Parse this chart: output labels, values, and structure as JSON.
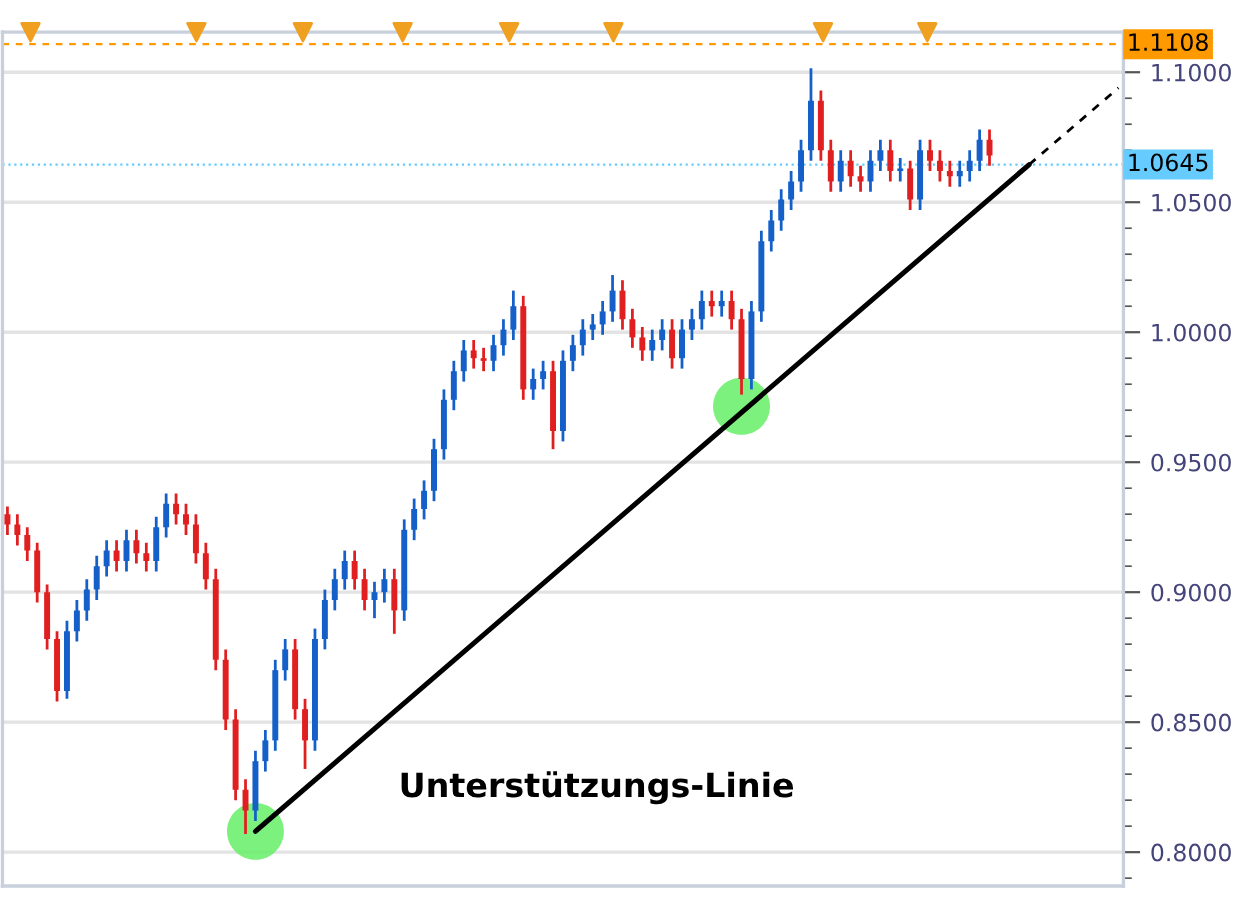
{
  "chart_data": {
    "type": "candlestick",
    "categories": [
      null,
      null,
      null,
      null,
      null,
      null,
      null,
      null,
      null,
      null,
      null,
      null,
      null,
      null,
      null,
      null,
      null,
      null,
      null,
      null,
      null,
      null,
      null,
      null,
      null,
      null,
      null,
      null,
      null,
      null,
      null,
      null,
      null,
      null,
      null,
      null,
      null,
      null,
      null,
      null,
      null,
      null,
      null,
      null,
      null,
      null,
      null,
      null,
      null,
      null,
      null,
      null,
      null,
      null,
      null,
      null,
      null,
      null,
      null,
      null,
      null,
      null,
      null,
      null,
      null,
      null,
      null,
      null,
      null,
      null,
      null,
      null,
      null,
      null,
      null,
      null,
      null,
      null,
      null,
      null,
      null,
      null,
      null,
      null,
      null,
      null,
      null,
      null,
      null,
      null,
      null,
      null,
      null,
      null,
      null,
      null,
      null,
      null,
      null,
      null,
      null,
      null,
      null,
      null,
      null,
      null,
      null,
      null,
      null,
      null,
      null,
      null,
      null
    ],
    "ohlc": [
      [
        0.93,
        0.933,
        0.922,
        0.926
      ],
      [
        0.926,
        0.93,
        0.918,
        0.922
      ],
      [
        0.922,
        0.925,
        0.912,
        0.916
      ],
      [
        0.916,
        0.919,
        0.896,
        0.9
      ],
      [
        0.9,
        0.903,
        0.878,
        0.882
      ],
      [
        0.882,
        0.885,
        0.858,
        0.862
      ],
      [
        0.862,
        0.889,
        0.859,
        0.885
      ],
      [
        0.885,
        0.897,
        0.881,
        0.893
      ],
      [
        0.893,
        0.905,
        0.889,
        0.901
      ],
      [
        0.901,
        0.914,
        0.897,
        0.91
      ],
      [
        0.91,
        0.92,
        0.906,
        0.916
      ],
      [
        0.916,
        0.92,
        0.908,
        0.912
      ],
      [
        0.912,
        0.924,
        0.908,
        0.92
      ],
      [
        0.92,
        0.924,
        0.911,
        0.915
      ],
      [
        0.915,
        0.919,
        0.908,
        0.912
      ],
      [
        0.912,
        0.929,
        0.908,
        0.925
      ],
      [
        0.925,
        0.938,
        0.921,
        0.934
      ],
      [
        0.934,
        0.938,
        0.926,
        0.93
      ],
      [
        0.93,
        0.934,
        0.922,
        0.926
      ],
      [
        0.926,
        0.93,
        0.911,
        0.915
      ],
      [
        0.915,
        0.919,
        0.901,
        0.905
      ],
      [
        0.905,
        0.909,
        0.87,
        0.874
      ],
      [
        0.874,
        0.878,
        0.847,
        0.851
      ],
      [
        0.851,
        0.855,
        0.82,
        0.824
      ],
      [
        0.824,
        0.828,
        0.807,
        0.816
      ],
      [
        0.816,
        0.839,
        0.812,
        0.835
      ],
      [
        0.835,
        0.847,
        0.831,
        0.843
      ],
      [
        0.843,
        0.874,
        0.839,
        0.87
      ],
      [
        0.87,
        0.882,
        0.866,
        0.878
      ],
      [
        0.878,
        0.882,
        0.851,
        0.855
      ],
      [
        0.855,
        0.859,
        0.832,
        0.843
      ],
      [
        0.843,
        0.886,
        0.839,
        0.882
      ],
      [
        0.882,
        0.901,
        0.878,
        0.897
      ],
      [
        0.897,
        0.909,
        0.893,
        0.905
      ],
      [
        0.905,
        0.916,
        0.901,
        0.912
      ],
      [
        0.912,
        0.916,
        0.901,
        0.905
      ],
      [
        0.905,
        0.909,
        0.893,
        0.897
      ],
      [
        0.897,
        0.904,
        0.89,
        0.9
      ],
      [
        0.9,
        0.909,
        0.896,
        0.905
      ],
      [
        0.905,
        0.909,
        0.884,
        0.893
      ],
      [
        0.893,
        0.928,
        0.889,
        0.924
      ],
      [
        0.924,
        0.936,
        0.92,
        0.932
      ],
      [
        0.932,
        0.943,
        0.928,
        0.939
      ],
      [
        0.939,
        0.959,
        0.935,
        0.955
      ],
      [
        0.955,
        0.978,
        0.951,
        0.974
      ],
      [
        0.974,
        0.989,
        0.97,
        0.985
      ],
      [
        0.985,
        0.997,
        0.981,
        0.993
      ],
      [
        0.993,
        0.997,
        0.986,
        0.99
      ],
      [
        0.99,
        0.994,
        0.985,
        0.989
      ],
      [
        0.989,
        0.999,
        0.985,
        0.995
      ],
      [
        0.995,
        1.005,
        0.991,
        1.001
      ],
      [
        1.001,
        1.016,
        0.997,
        1.01
      ],
      [
        1.01,
        1.014,
        0.974,
        0.978
      ],
      [
        0.978,
        0.986,
        0.974,
        0.982
      ],
      [
        0.982,
        0.989,
        0.978,
        0.985
      ],
      [
        0.985,
        0.989,
        0.955,
        0.962
      ],
      [
        0.962,
        0.993,
        0.958,
        0.989
      ],
      [
        0.989,
        0.999,
        0.985,
        0.995
      ],
      [
        0.995,
        1.005,
        0.991,
        1.001
      ],
      [
        1.001,
        1.007,
        0.997,
        1.003
      ],
      [
        1.003,
        1.012,
        0.999,
        1.008
      ],
      [
        1.008,
        1.022,
        1.004,
        1.016
      ],
      [
        1.016,
        1.02,
        1.001,
        1.005
      ],
      [
        1.005,
        1.009,
        0.994,
        0.998
      ],
      [
        0.998,
        1.002,
        0.989,
        0.993
      ],
      [
        0.993,
        1.001,
        0.989,
        0.997
      ],
      [
        0.997,
        1.005,
        0.993,
        1.001
      ],
      [
        1.001,
        1.005,
        0.986,
        0.99
      ],
      [
        0.99,
        1.005,
        0.986,
        1.001
      ],
      [
        1.001,
        1.009,
        0.997,
        1.005
      ],
      [
        1.005,
        1.016,
        1.001,
        1.012
      ],
      [
        1.012,
        1.016,
        1.006,
        1.01
      ],
      [
        1.01,
        1.016,
        1.006,
        1.012
      ],
      [
        1.012,
        1.016,
        1.001,
        1.005
      ],
      [
        1.005,
        1.009,
        0.976,
        0.982
      ],
      [
        0.982,
        1.012,
        0.978,
        1.008
      ],
      [
        1.008,
        1.039,
        1.004,
        1.035
      ],
      [
        1.035,
        1.047,
        1.031,
        1.043
      ],
      [
        1.043,
        1.055,
        1.039,
        1.051
      ],
      [
        1.051,
        1.062,
        1.047,
        1.058
      ],
      [
        1.058,
        1.074,
        1.054,
        1.07
      ],
      [
        1.07,
        1.1015,
        1.066,
        1.089
      ],
      [
        1.089,
        1.093,
        1.066,
        1.07
      ],
      [
        1.07,
        1.074,
        1.054,
        1.058
      ],
      [
        1.058,
        1.07,
        1.054,
        1.066
      ],
      [
        1.066,
        1.07,
        1.056,
        1.06
      ],
      [
        1.06,
        1.064,
        1.054,
        1.058
      ],
      [
        1.058,
        1.07,
        1.054,
        1.066
      ],
      [
        1.066,
        1.074,
        1.062,
        1.07
      ],
      [
        1.07,
        1.074,
        1.058,
        1.062
      ],
      [
        1.062,
        1.067,
        1.058,
        1.063
      ],
      [
        1.063,
        1.066,
        1.047,
        1.051
      ],
      [
        1.051,
        1.074,
        1.047,
        1.07
      ],
      [
        1.07,
        1.074,
        1.062,
        1.066
      ],
      [
        1.066,
        1.07,
        1.058,
        1.062
      ],
      [
        1.062,
        1.066,
        1.056,
        1.06
      ],
      [
        1.06,
        1.066,
        1.056,
        1.062
      ],
      [
        1.062,
        1.07,
        1.058,
        1.066
      ],
      [
        1.066,
        1.078,
        1.062,
        1.074
      ],
      [
        1.074,
        1.078,
        1.064,
        1.068
      ],
      null,
      null,
      null,
      null,
      null,
      null,
      null,
      null,
      null,
      null,
      null,
      null,
      null
    ],
    "colors": [
      "#e02020",
      "#e02020",
      "#e02020",
      "#e02020",
      "#e02020",
      "#e02020",
      "#1560c8",
      "#1560c8",
      "#1560c8",
      "#1560c8",
      "#1560c8",
      "#e02020",
      "#1560c8",
      "#e02020",
      "#e02020",
      "#1560c8",
      "#1560c8",
      "#e02020",
      "#e02020",
      "#e02020",
      "#e02020",
      "#e02020",
      "#e02020",
      "#e02020",
      "#e02020",
      "#1560c8",
      "#1560c8",
      "#1560c8",
      "#1560c8",
      "#e02020",
      "#e02020",
      "#1560c8",
      "#1560c8",
      "#1560c8",
      "#1560c8",
      "#e02020",
      "#e02020",
      "#1560c8",
      "#1560c8",
      "#e02020",
      "#1560c8",
      "#1560c8",
      "#1560c8",
      "#1560c8",
      "#1560c8",
      "#1560c8",
      "#1560c8",
      "#e02020",
      "#e02020",
      "#1560c8",
      "#1560c8",
      "#1560c8",
      "#e02020",
      "#1560c8",
      "#1560c8",
      "#e02020",
      "#1560c8",
      "#1560c8",
      "#1560c8",
      "#1560c8",
      "#1560c8",
      "#1560c8",
      "#e02020",
      "#e02020",
      "#e02020",
      "#1560c8",
      "#1560c8",
      "#e02020",
      "#1560c8",
      "#1560c8",
      "#1560c8",
      "#e02020",
      "#1560c8",
      "#e02020",
      "#e02020",
      "#1560c8",
      "#1560c8",
      "#1560c8",
      "#1560c8",
      "#1560c8",
      "#1560c8",
      "#1560c8",
      "#e02020",
      "#e02020",
      "#1560c8",
      "#e02020",
      "#e02020",
      "#1560c8",
      "#1560c8",
      "#e02020",
      "#1560c8",
      "#e02020",
      "#1560c8",
      "#e02020",
      "#e02020",
      "#e02020",
      "#1560c8",
      "#1560c8",
      "#1560c8",
      "#e02020",
      null,
      null,
      null,
      null,
      null,
      null,
      null,
      null,
      null,
      null,
      null,
      null,
      null
    ],
    "series": [
      {
        "type": "line",
        "values": [
          null,
          null,
          null,
          null,
          null,
          null,
          null,
          null,
          null,
          null,
          null,
          null,
          null,
          null,
          null,
          null,
          null,
          null,
          null,
          null,
          null,
          null,
          null,
          null,
          null,
          0.808,
          null,
          null,
          null,
          null,
          null,
          null,
          null,
          null,
          null,
          null,
          null,
          null,
          null,
          null,
          null,
          null,
          null,
          null,
          null,
          null,
          null,
          null,
          null,
          null,
          null,
          null,
          null,
          null,
          null,
          null,
          null,
          null,
          null,
          null,
          null,
          null,
          null,
          null,
          null,
          null,
          null,
          null,
          null,
          null,
          null,
          null,
          null,
          null,
          null,
          null,
          null,
          null,
          null,
          null,
          null,
          null,
          null,
          null,
          null,
          null,
          null,
          null,
          null,
          null,
          null,
          null,
          null,
          null,
          null,
          null,
          null,
          null,
          null,
          null,
          null,
          null,
          null,
          1.0645,
          null,
          null,
          null,
          null,
          null,
          null,
          null,
          null,
          null
        ],
        "color": "#000000",
        "line_style": "solid"
      },
      {
        "type": "line",
        "values": [
          null,
          null,
          null,
          null,
          null,
          null,
          null,
          null,
          null,
          null,
          null,
          null,
          null,
          null,
          null,
          null,
          null,
          null,
          null,
          null,
          null,
          null,
          null,
          null,
          null,
          null,
          null,
          null,
          null,
          null,
          null,
          null,
          null,
          null,
          null,
          null,
          null,
          null,
          null,
          null,
          null,
          null,
          null,
          null,
          null,
          null,
          null,
          null,
          null,
          null,
          null,
          null,
          null,
          null,
          null,
          null,
          null,
          null,
          null,
          null,
          null,
          null,
          null,
          null,
          null,
          null,
          null,
          null,
          null,
          null,
          null,
          null,
          null,
          null,
          null,
          null,
          null,
          null,
          null,
          null,
          null,
          null,
          null,
          null,
          null,
          null,
          null,
          null,
          null,
          null,
          null,
          null,
          null,
          null,
          null,
          null,
          null,
          null,
          null,
          null,
          null,
          null,
          null,
          1.0645,
          null,
          null,
          null,
          null,
          null,
          null,
          null,
          null,
          1.094
        ],
        "color": "#000000",
        "line_style": "dashed"
      },
      {
        "type": "scatter",
        "values": [
          null,
          null,
          null,
          null,
          null,
          null,
          null,
          null,
          null,
          null,
          null,
          null,
          null,
          null,
          null,
          null,
          null,
          null,
          null,
          null,
          null,
          null,
          null,
          null,
          null,
          0.808,
          null,
          null,
          null,
          null,
          null,
          null,
          null,
          null,
          null,
          null,
          null,
          null,
          null,
          null,
          null,
          null,
          null,
          null,
          null,
          null,
          null,
          null,
          null,
          null,
          null,
          null,
          null,
          null,
          null,
          null,
          null,
          null,
          null,
          null,
          null,
          null,
          null,
          null,
          null,
          null,
          null,
          null,
          null,
          null,
          null,
          null,
          null,
          null,
          0.9715,
          null,
          null,
          null,
          null,
          null,
          null,
          null,
          null,
          null,
          null,
          null,
          null,
          null,
          null,
          null,
          null,
          null,
          null,
          null,
          null,
          null,
          null,
          null,
          null,
          null,
          null,
          null,
          null,
          null,
          null,
          null,
          null,
          null,
          null,
          null,
          null,
          null,
          null
        ],
        "color": "#66ee66"
      }
    ],
    "annotations": [
      "Unterstützungs-Linie"
    ],
    "ref_lines": [
      {
        "axis": "y",
        "value": 1.1108,
        "label": "1.1108",
        "color": "#ff9900",
        "line_style": "dashed"
      },
      {
        "axis": "y",
        "value": 1.0645,
        "label": "1.0645",
        "color": "#66ccff",
        "line_style": "dotted"
      }
    ],
    "ylim": [
      0.787,
      1.1154
    ],
    "yticks": [
      {
        "value": 0.8,
        "label": "0.8000"
      },
      {
        "value": 0.85,
        "label": "0.8500"
      },
      {
        "value": 0.9,
        "label": "0.9000"
      },
      {
        "value": 0.95,
        "label": "0.9500"
      },
      {
        "value": 1.0,
        "label": "1.0000"
      },
      {
        "value": 1.05,
        "label": "1.0500"
      },
      {
        "value": 1.1,
        "label": "1.1000"
      }
    ],
    "grid": "y",
    "tick_labels": "y"
  }
}
